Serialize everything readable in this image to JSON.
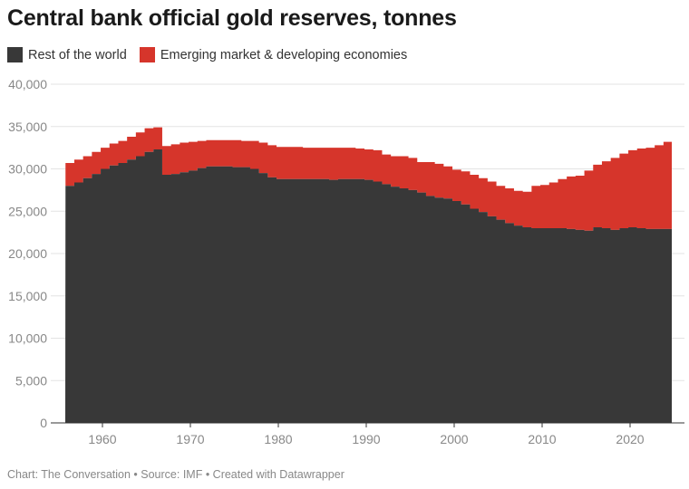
{
  "chart_data": {
    "type": "area",
    "stacked": true,
    "title": "Central bank official gold reserves, tonnes",
    "xlabel": "",
    "ylabel": "",
    "ylim": [
      0,
      40000
    ],
    "yticks": [
      0,
      5000,
      10000,
      15000,
      20000,
      25000,
      30000,
      35000,
      40000
    ],
    "ytick_labels": [
      "0",
      "5,000",
      "10,000",
      "15,000",
      "20,000",
      "25,000",
      "30,000",
      "35,000",
      "40,000"
    ],
    "xticks": [
      1960,
      1970,
      1980,
      1990,
      2000,
      2010,
      2020
    ],
    "xtick_labels": [
      "1960",
      "1970",
      "1980",
      "1990",
      "2000",
      "2010",
      "2020"
    ],
    "grid": true,
    "legend_position": "top-left",
    "x": [
      1956,
      1957,
      1958,
      1959,
      1960,
      1961,
      1962,
      1963,
      1964,
      1965,
      1966,
      1967,
      1968,
      1969,
      1970,
      1971,
      1972,
      1973,
      1974,
      1975,
      1976,
      1977,
      1978,
      1979,
      1980,
      1981,
      1982,
      1983,
      1984,
      1985,
      1986,
      1987,
      1988,
      1989,
      1990,
      1991,
      1992,
      1993,
      1994,
      1995,
      1996,
      1997,
      1998,
      1999,
      2000,
      2001,
      2002,
      2003,
      2004,
      2005,
      2006,
      2007,
      2008,
      2009,
      2010,
      2011,
      2012,
      2013,
      2014,
      2015,
      2016,
      2017,
      2018,
      2019,
      2020,
      2021,
      2022,
      2023,
      2024
    ],
    "series": [
      {
        "name": "Rest of the world",
        "color": "#383838",
        "values": [
          28000,
          28400,
          28900,
          29400,
          30000,
          30400,
          30700,
          31100,
          31500,
          32000,
          32300,
          29300,
          29400,
          29600,
          29800,
          30100,
          30300,
          30300,
          30300,
          30200,
          30200,
          30000,
          29500,
          29000,
          28800,
          28800,
          28800,
          28800,
          28800,
          28800,
          28700,
          28800,
          28800,
          28800,
          28700,
          28500,
          28200,
          27900,
          27700,
          27500,
          27200,
          26800,
          26600,
          26500,
          26200,
          25800,
          25300,
          24900,
          24400,
          24000,
          23600,
          23300,
          23100,
          23000,
          23000,
          23000,
          23000,
          22900,
          22800,
          22700,
          23100,
          23000,
          22800,
          23000,
          23100,
          23000,
          22900,
          22900,
          22900
        ]
      },
      {
        "name": "Emerging market & developing economies",
        "color": "#d6352b",
        "values": [
          2700,
          2700,
          2600,
          2600,
          2500,
          2600,
          2600,
          2700,
          2800,
          2800,
          2600,
          3400,
          3500,
          3500,
          3400,
          3200,
          3100,
          3100,
          3100,
          3200,
          3100,
          3300,
          3600,
          3800,
          3800,
          3800,
          3800,
          3700,
          3700,
          3700,
          3800,
          3700,
          3700,
          3600,
          3600,
          3700,
          3500,
          3600,
          3800,
          3800,
          3600,
          4000,
          4000,
          3800,
          3700,
          3900,
          4000,
          4000,
          4100,
          4000,
          4100,
          4100,
          4200,
          5000,
          5100,
          5400,
          5800,
          6200,
          6400,
          7100,
          7400,
          7900,
          8500,
          8800,
          9100,
          9400,
          9600,
          9900,
          10300
        ]
      }
    ]
  },
  "footer": "Chart: The Conversation • Source: IMF • Created with Datawrapper"
}
